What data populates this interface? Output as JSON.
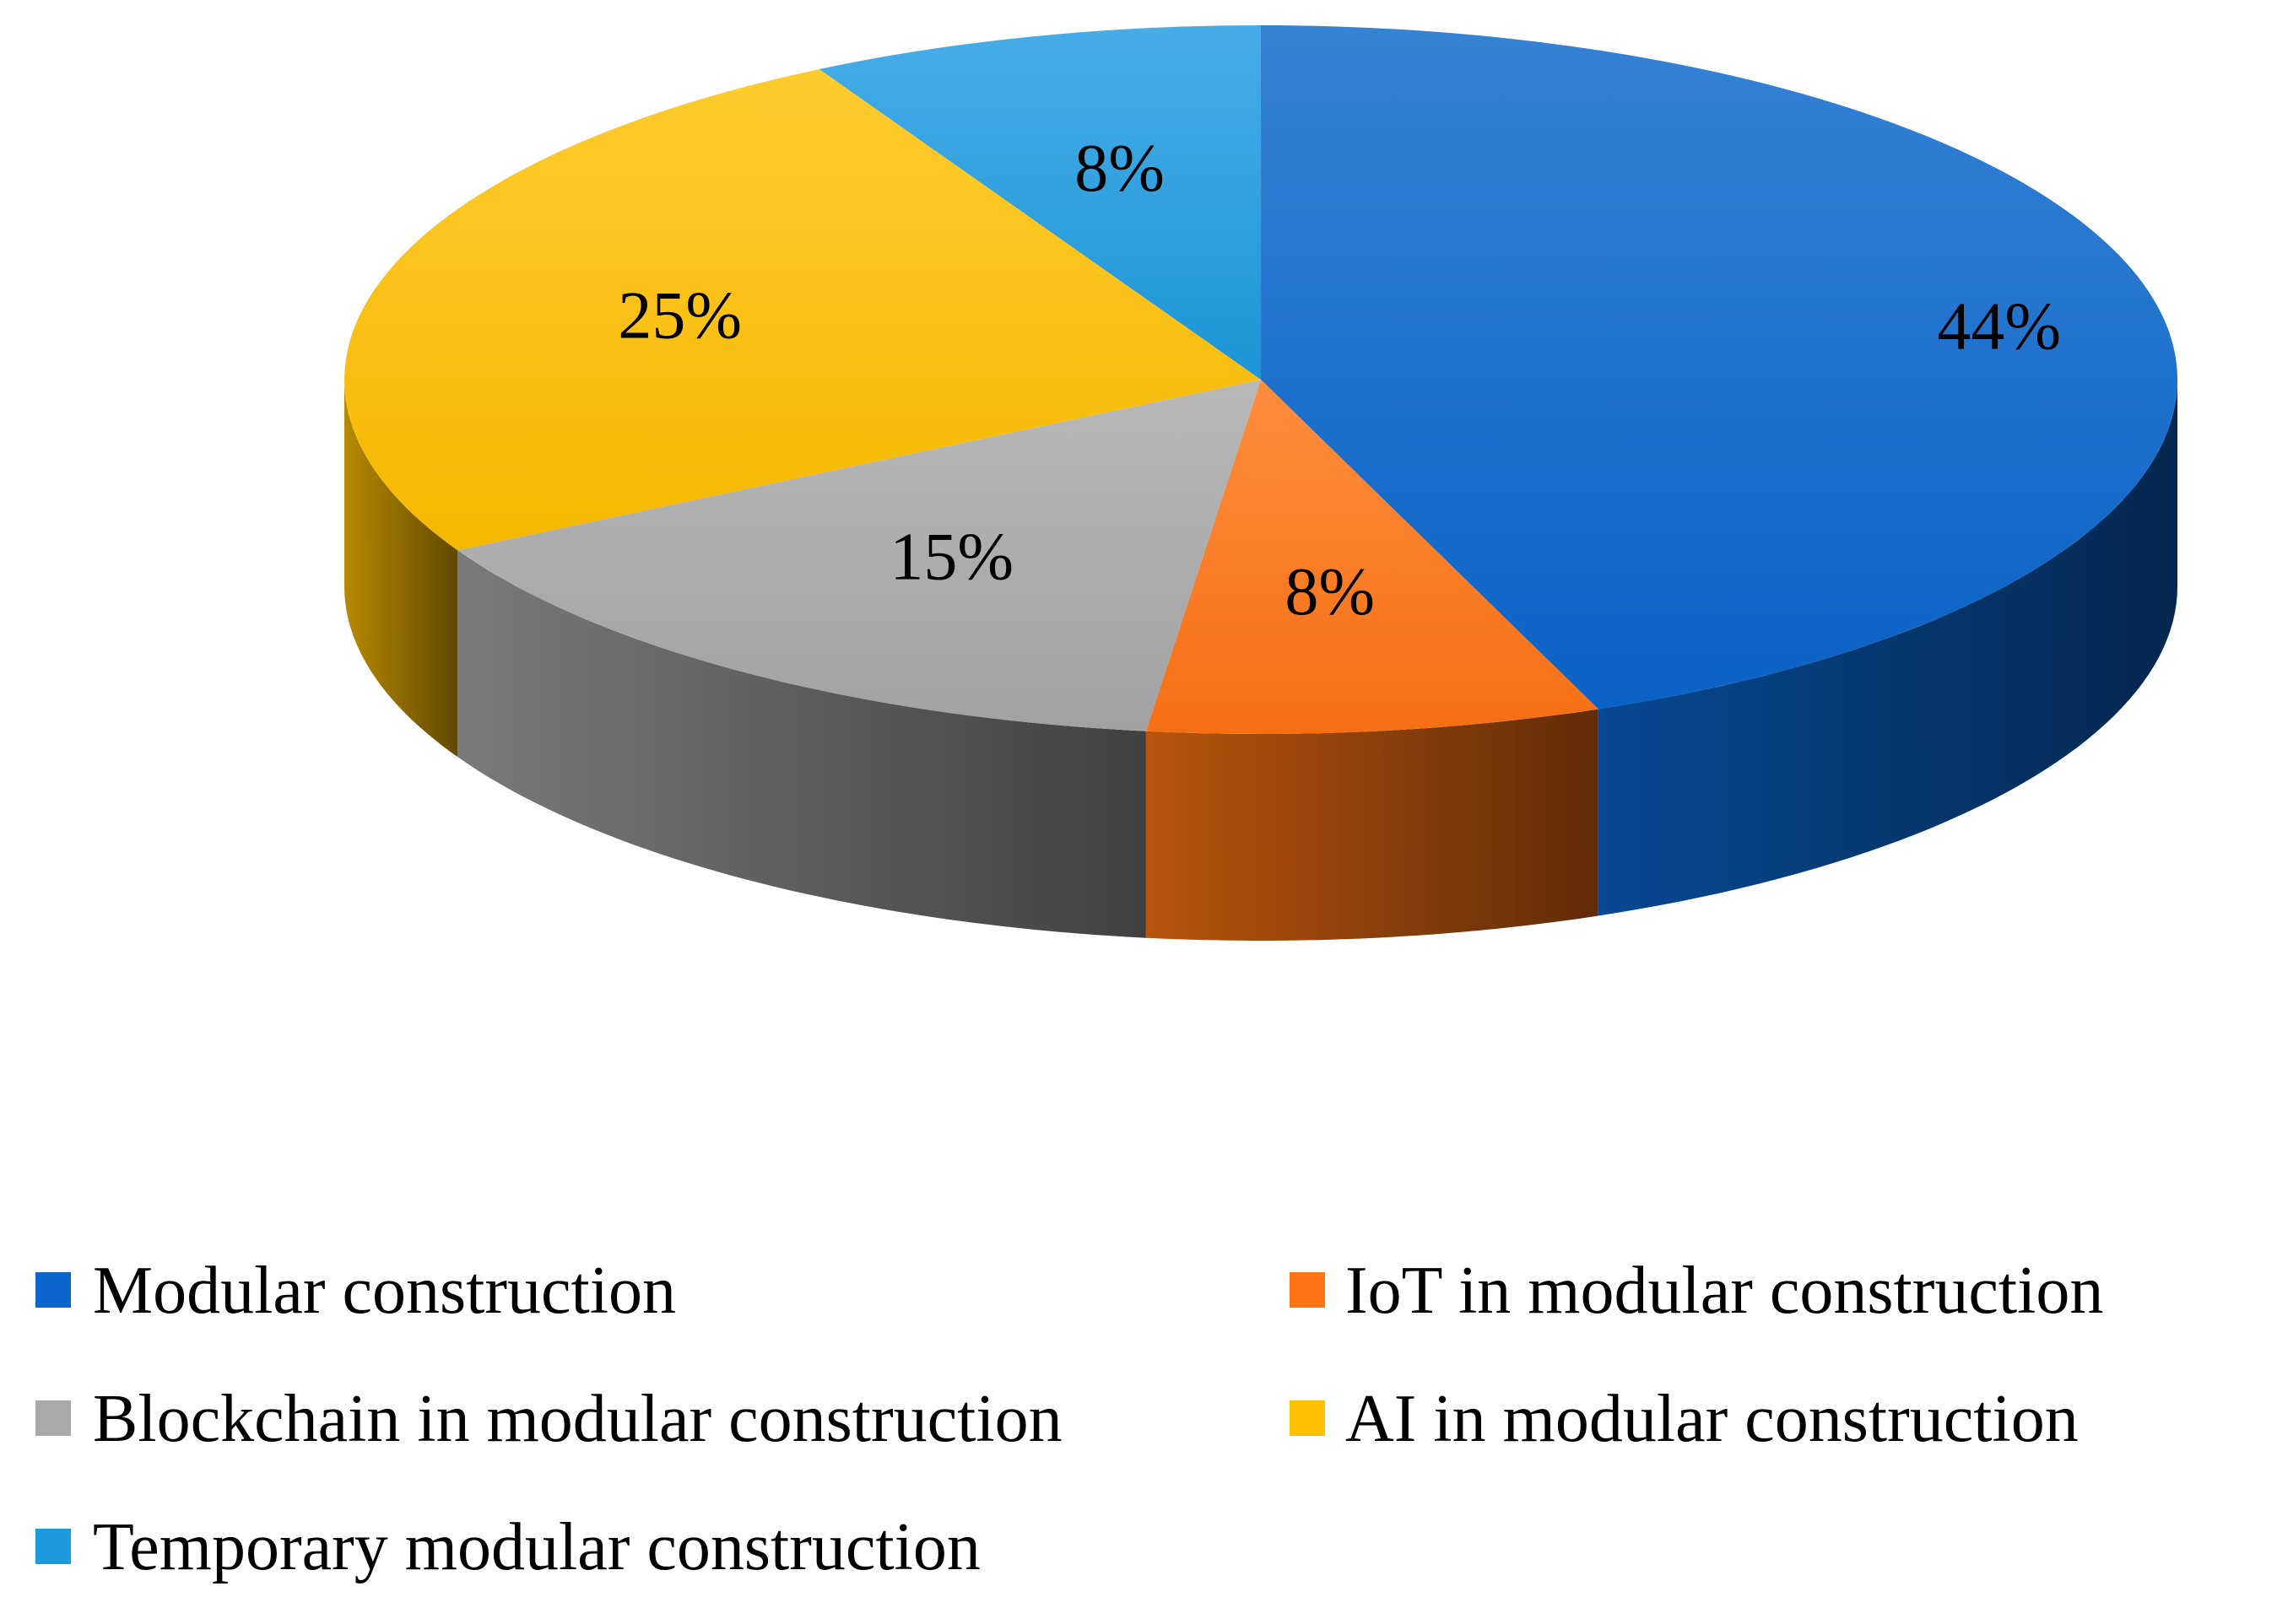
{
  "chart_data": {
    "type": "pie",
    "style": "3d",
    "title": "",
    "label_format": "percent",
    "slices": [
      {
        "name": "Modular construction",
        "value": 44,
        "label": "44%",
        "color": "#0A66CC"
      },
      {
        "name": "IoT in modular construction",
        "value": 8,
        "label": "8%",
        "color": "#FF7414"
      },
      {
        "name": "Blockchain in modular construction",
        "value": 15,
        "label": "15%",
        "color": "#A9A9A9"
      },
      {
        "name": "AI in modular construction",
        "value": 25,
        "label": "25%",
        "color": "#FFC000"
      },
      {
        "name": "Temporary modular construction",
        "value": 8,
        "label": "8%",
        "color": "#1E9BE0"
      }
    ],
    "legend": {
      "placement": "bottom",
      "entries": [
        "Modular construction",
        "IoT in modular construction",
        "Blockchain in modular construction",
        "AI in modular construction",
        "Temporary modular construction"
      ]
    }
  }
}
